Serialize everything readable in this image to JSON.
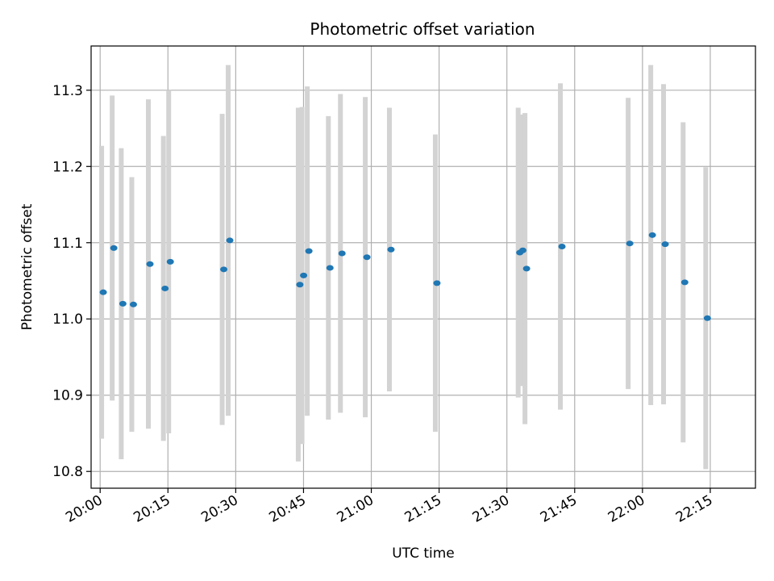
{
  "chart_data": {
    "type": "scatter",
    "title": "Photometric offset variation",
    "xlabel": "UTC time",
    "ylabel": "Photometric offset",
    "grid": true,
    "colors": {
      "marker": "#1f77b4",
      "errorbar": "#d3d3d3"
    },
    "xlim": [
      "19:58",
      "22:25"
    ],
    "ylim": [
      10.778,
      11.358
    ],
    "x_ticks": [
      "20:00",
      "20:15",
      "20:30",
      "20:45",
      "21:00",
      "21:15",
      "21:30",
      "21:45",
      "22:00",
      "22:15"
    ],
    "y_ticks": [
      10.8,
      10.9,
      11.0,
      11.1,
      11.2,
      11.3
    ],
    "y_tick_labels": [
      "10.8",
      "10.9",
      "11.0",
      "11.1",
      "11.2",
      "11.3"
    ],
    "points": [
      {
        "time": "20:00:20",
        "y": 11.035,
        "lo": 10.843,
        "hi": 11.227
      },
      {
        "time": "20:02:40",
        "y": 11.093,
        "lo": 10.893,
        "hi": 11.293
      },
      {
        "time": "20:04:40",
        "y": 11.02,
        "lo": 10.816,
        "hi": 11.224
      },
      {
        "time": "20:07:00",
        "y": 11.019,
        "lo": 10.852,
        "hi": 11.186
      },
      {
        "time": "20:10:40",
        "y": 11.072,
        "lo": 10.856,
        "hi": 11.288
      },
      {
        "time": "20:14:00",
        "y": 11.04,
        "lo": 10.84,
        "hi": 11.24
      },
      {
        "time": "20:15:10",
        "y": 11.075,
        "lo": 10.85,
        "hi": 11.3
      },
      {
        "time": "20:27:00",
        "y": 11.065,
        "lo": 10.861,
        "hi": 11.269
      },
      {
        "time": "20:28:20",
        "y": 11.103,
        "lo": 10.873,
        "hi": 11.333
      },
      {
        "time": "20:43:50",
        "y": 11.045,
        "lo": 10.813,
        "hi": 11.277
      },
      {
        "time": "20:44:40",
        "y": 11.057,
        "lo": 10.836,
        "hi": 11.278
      },
      {
        "time": "20:45:50",
        "y": 11.089,
        "lo": 10.873,
        "hi": 11.305
      },
      {
        "time": "20:50:30",
        "y": 11.067,
        "lo": 10.868,
        "hi": 11.266
      },
      {
        "time": "20:53:10",
        "y": 11.086,
        "lo": 10.877,
        "hi": 11.295
      },
      {
        "time": "20:58:40",
        "y": 11.081,
        "lo": 10.871,
        "hi": 11.291
      },
      {
        "time": "21:04:00",
        "y": 11.091,
        "lo": 10.905,
        "hi": 11.277
      },
      {
        "time": "21:14:10",
        "y": 11.047,
        "lo": 10.852,
        "hi": 11.242
      },
      {
        "time": "21:32:30",
        "y": 11.087,
        "lo": 10.897,
        "hi": 11.277
      },
      {
        "time": "21:33:10",
        "y": 11.09,
        "lo": 10.912,
        "hi": 11.268
      },
      {
        "time": "21:34:00",
        "y": 11.066,
        "lo": 10.862,
        "hi": 11.27
      },
      {
        "time": "21:41:50",
        "y": 11.095,
        "lo": 10.881,
        "hi": 11.309
      },
      {
        "time": "21:56:50",
        "y": 11.099,
        "lo": 10.908,
        "hi": 11.29
      },
      {
        "time": "22:01:50",
        "y": 11.11,
        "lo": 10.887,
        "hi": 11.333
      },
      {
        "time": "22:04:40",
        "y": 11.098,
        "lo": 10.888,
        "hi": 11.308
      },
      {
        "time": "22:09:00",
        "y": 11.048,
        "lo": 10.838,
        "hi": 11.258
      },
      {
        "time": "22:14:00",
        "y": 11.001,
        "lo": 10.803,
        "hi": 11.199
      }
    ]
  }
}
